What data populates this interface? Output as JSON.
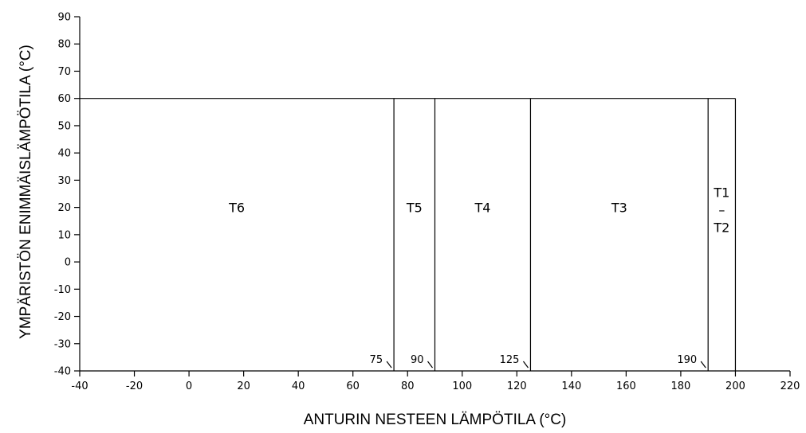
{
  "chart_data": {
    "type": "area",
    "title": "",
    "xlabel": "ANTURIN NESTEEN LÄMPÖTILA (°C)",
    "ylabel": "YMPÄRISTÖN ENIMMÄISLÄMPÖTILA (°C)",
    "xlim": [
      -40,
      220
    ],
    "ylim": [
      -40,
      90
    ],
    "xticks": [
      -40,
      -20,
      0,
      20,
      40,
      60,
      80,
      100,
      120,
      140,
      160,
      180,
      200,
      220
    ],
    "yticks": [
      90,
      80,
      70,
      60,
      50,
      40,
      30,
      20,
      10,
      0,
      -10,
      -20,
      -30,
      -40
    ],
    "max_ambient": 60,
    "boundaries": [
      {
        "x": 75,
        "label": "75"
      },
      {
        "x": 90,
        "label": "90"
      },
      {
        "x": 125,
        "label": "125"
      },
      {
        "x": 190,
        "label": "190"
      },
      {
        "x": 200,
        "label": ""
      }
    ],
    "zones": [
      {
        "name": "T6",
        "x_from": -40,
        "x_to": 75,
        "y_max": 60,
        "label_lines": [
          "T6"
        ]
      },
      {
        "name": "T5",
        "x_from": 75,
        "x_to": 90,
        "y_max": 60,
        "label_lines": [
          "T5"
        ]
      },
      {
        "name": "T4",
        "x_from": 90,
        "x_to": 125,
        "y_max": 60,
        "label_lines": [
          "T4"
        ]
      },
      {
        "name": "T3",
        "x_from": 125,
        "x_to": 190,
        "y_max": 60,
        "label_lines": [
          "T3"
        ]
      },
      {
        "name": "T1 – T2",
        "x_from": 190,
        "x_to": 200,
        "y_max": 60,
        "label_lines": [
          "T1",
          "–",
          "T2"
        ]
      }
    ],
    "grid": false,
    "legend": "none"
  }
}
